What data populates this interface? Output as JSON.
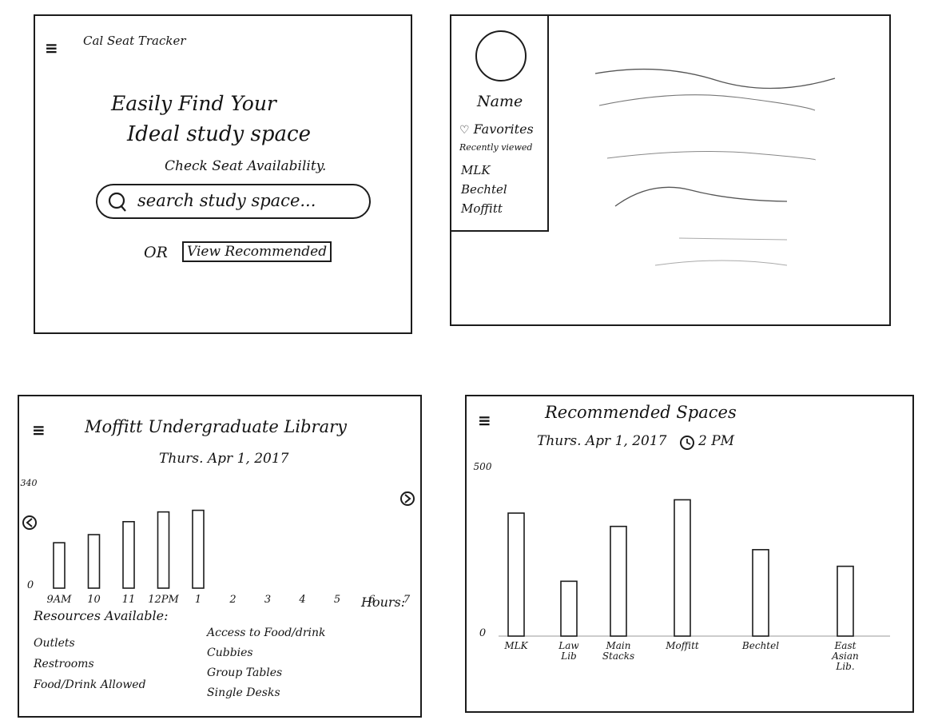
{
  "home": {
    "menu_icon": "≡",
    "app_title": "Cal Seat Tracker",
    "headline_1": "Easily Find Your",
    "headline_2": "Ideal study space",
    "subhead": "Check Seat Availability.",
    "search_placeholder": "search study space...",
    "or_label": "OR",
    "recommended_button": "View Recommended"
  },
  "sidebar": {
    "name_label": "Name",
    "items": [
      {
        "label": "Favorites",
        "icon": "heart-icon"
      },
      {
        "label": "Recently viewed"
      },
      {
        "label": "MLK"
      },
      {
        "label": "Bechtel"
      },
      {
        "label": "Moffitt"
      }
    ]
  },
  "library": {
    "menu_icon": "≡",
    "title": "Moffitt Undergraduate Library",
    "date": "Thurs. Apr 1, 2017",
    "hours_label": "Hours:",
    "resources_title": "Resources Available:",
    "resources_left": [
      "Outlets",
      "Restrooms",
      "Food/Drink Allowed"
    ],
    "resources_right": [
      "Access to Food/drink",
      "Cubbies",
      "Group Tables",
      "Single Desks"
    ]
  },
  "recommended": {
    "menu_icon": "≡",
    "title": "Recommended Spaces",
    "date": "Thurs. Apr 1, 2017",
    "time": "2 PM",
    "clock_icon": "clock-icon"
  },
  "chart_data": [
    {
      "type": "bar",
      "categories": [
        "9AM",
        "10",
        "11",
        "12PM",
        "1",
        "2",
        "3",
        "4",
        "5",
        "6",
        "7"
      ],
      "values": [
        140,
        165,
        205,
        235,
        240,
        null,
        null,
        null,
        null,
        null,
        null
      ],
      "ylim": [
        0,
        340
      ],
      "y_ticks": [
        "0",
        "340"
      ],
      "xlabel": "",
      "ylabel": ""
    },
    {
      "type": "bar",
      "categories": [
        "MLK",
        "Law Lib",
        "Main Stacks",
        "Moffitt",
        "Bechtel",
        "East Asian Lib."
      ],
      "values": [
        370,
        165,
        330,
        410,
        260,
        210
      ],
      "ylim": [
        0,
        500
      ],
      "y_ticks": [
        "0",
        "500"
      ],
      "xlabel": "",
      "ylabel": ""
    }
  ]
}
